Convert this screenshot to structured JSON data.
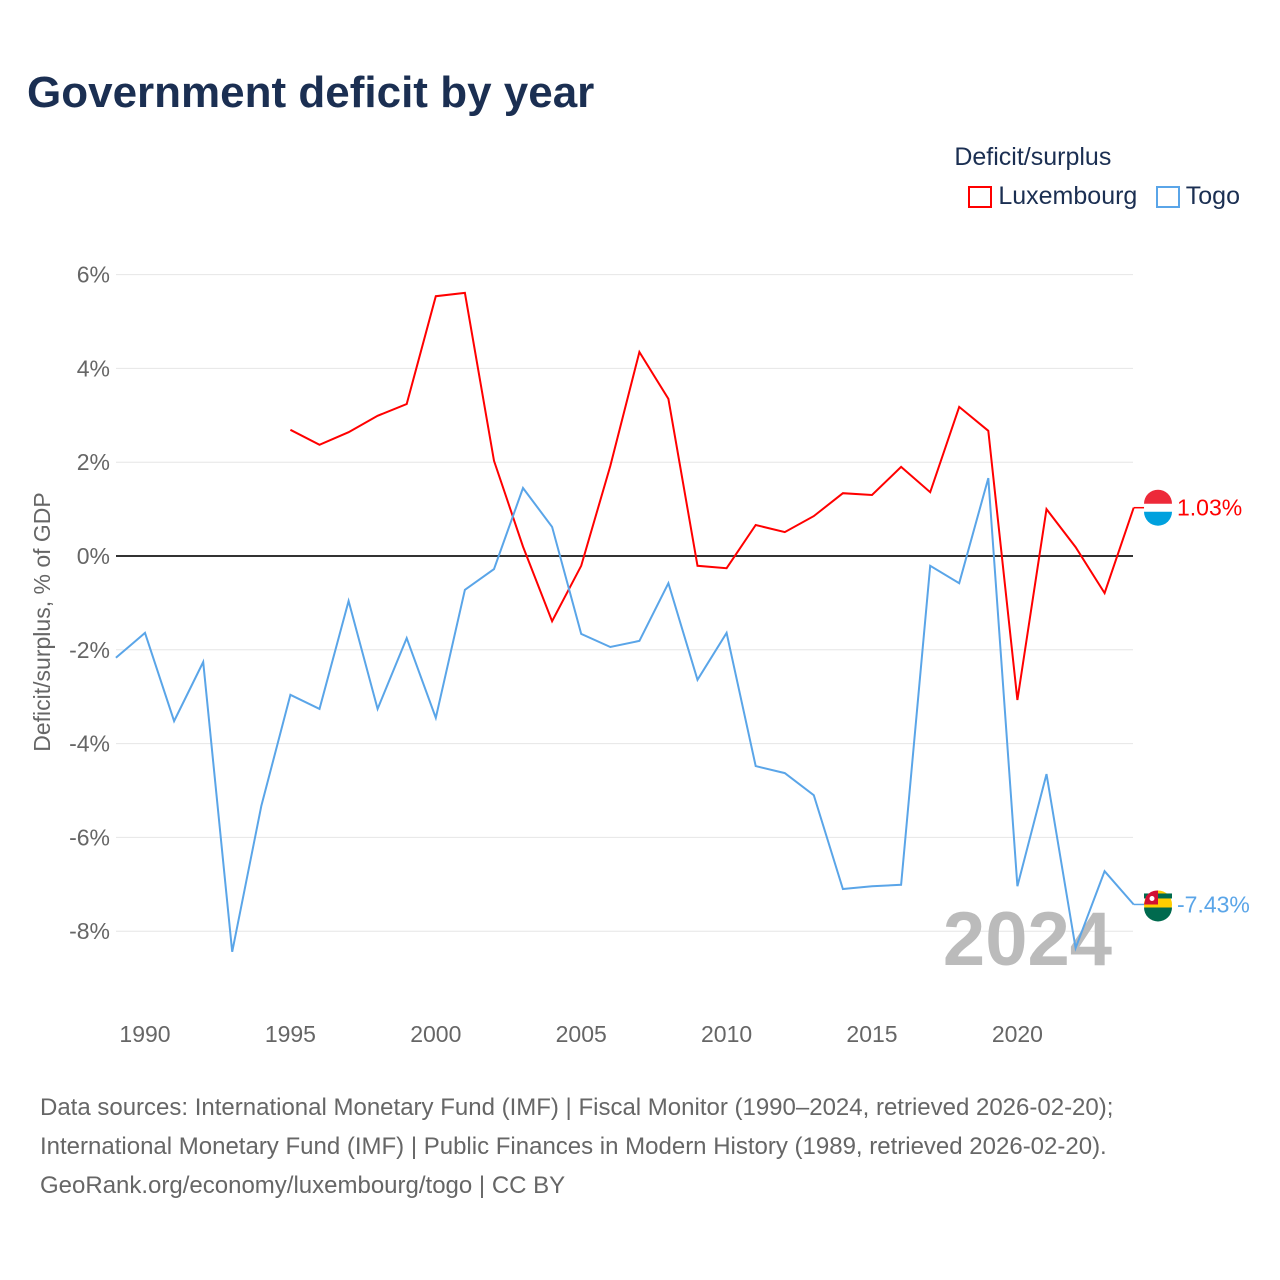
{
  "chart_data": {
    "type": "line",
    "title": "Government deficit by year",
    "ylabel": "Deficit/surplus, % of GDP",
    "xlabel": "",
    "xlim": [
      1989,
      2024
    ],
    "ylim": [
      -9.5,
      6.5
    ],
    "x_ticks": [
      1990,
      1995,
      2000,
      2005,
      2010,
      2015,
      2020
    ],
    "y_ticks": [
      6,
      4,
      2,
      0,
      -2,
      -4,
      -6,
      -8
    ],
    "y_tick_labels": [
      "6%",
      "4%",
      "2%",
      "0%",
      "-2%",
      "-4%",
      "-6%",
      "-8%"
    ],
    "grid": true,
    "legend_title": "Deficit/surplus",
    "legend_position": "top-right",
    "year_watermark": "2024",
    "series": [
      {
        "name": "Luxembourg",
        "color": "#ff0000",
        "end_label": "1.03%",
        "start_year": 1995,
        "values": [
          2.69,
          2.37,
          2.64,
          2.99,
          3.24,
          5.54,
          5.61,
          2.03,
          0.2,
          -1.39,
          -0.21,
          1.92,
          4.35,
          3.35,
          -0.21,
          -0.26,
          0.66,
          0.51,
          0.85,
          1.34,
          1.3,
          1.9,
          1.36,
          3.18,
          2.67,
          -3.07,
          1.0,
          0.19,
          -0.79,
          1.03
        ]
      },
      {
        "name": "Togo",
        "color": "#5aa5e8",
        "end_label": "-7.43%",
        "start_year": 1989,
        "values": [
          -2.17,
          -1.64,
          -3.52,
          -2.26,
          -8.44,
          -5.33,
          -2.96,
          -3.26,
          -0.96,
          -3.26,
          -1.75,
          -3.45,
          -0.72,
          -0.28,
          1.45,
          0.62,
          -1.66,
          -1.94,
          -1.81,
          -0.58,
          -2.64,
          -1.64,
          -4.48,
          -4.63,
          -5.1,
          -7.1,
          -7.04,
          -7.01,
          -0.21,
          -0.58,
          1.66,
          -7.04,
          -4.65,
          -8.36,
          -6.72,
          -7.43
        ]
      }
    ]
  },
  "footer": {
    "line1": "Data sources: International Monetary Fund (IMF) | Fiscal Monitor (1990–2024, retrieved 2026-02-20);",
    "line2": "International Monetary Fund (IMF) | Public Finances in Modern History (1989, retrieved 2026-02-20).",
    "line3": "GeoRank.org/economy/luxembourg/togo | CC BY"
  }
}
